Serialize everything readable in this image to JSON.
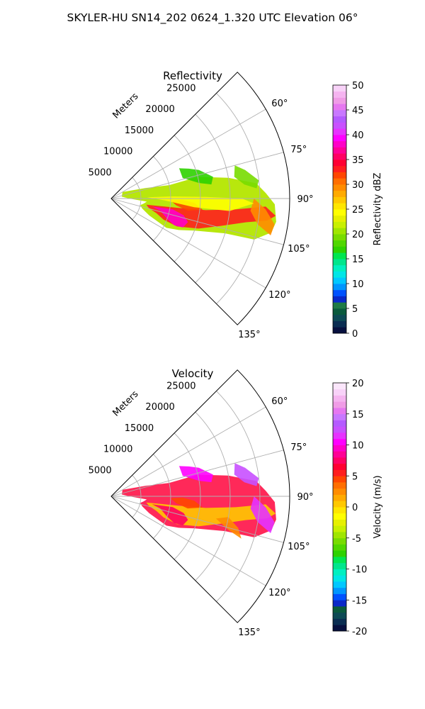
{
  "figure": {
    "suptitle": "SKYLER-HU  SN14_202  0624_1.320 UTC Elevation 06°"
  },
  "chart_data": [
    {
      "type": "polar-sector",
      "title": "Reflectivity",
      "radial_label": "Meters",
      "radial_ticks": [
        5000,
        10000,
        15000,
        20000,
        25000
      ],
      "radial_range": [
        0,
        30000
      ],
      "angle_ticks": [
        "60°",
        "75°",
        "90°",
        "105°",
        "120°",
        "135°"
      ],
      "angle_range_deg": [
        45,
        135
      ],
      "grid": true,
      "colorbar": {
        "label": "Reflectivity dBZ",
        "range": [
          0,
          50
        ],
        "ticks": [
          0,
          5,
          10,
          15,
          20,
          25,
          30,
          35,
          40,
          45,
          50
        ],
        "colors": [
          "#07103f",
          "#0a2d52",
          "#0d4a55",
          "#0a5a3d",
          "#1f7a45",
          "#0a28c8",
          "#0052ff",
          "#0096ff",
          "#00c8ff",
          "#00e6e6",
          "#00f0c0",
          "#00e68c",
          "#00e650",
          "#2ed200",
          "#50d700",
          "#78dc00",
          "#a0e600",
          "#c8f000",
          "#e6f000",
          "#ffff00",
          "#ffe600",
          "#ffc800",
          "#ffaa00",
          "#ff8c00",
          "#ff6e00",
          "#ff4600",
          "#ff1e1e",
          "#ff0032",
          "#ff0064",
          "#ff0096",
          "#ff00c8",
          "#ff00ff",
          "#e632ff",
          "#c850ff",
          "#b45aff",
          "#c878ff",
          "#e678f0",
          "#f09ce6",
          "#f5b4f0",
          "#f8d2f8"
        ]
      }
    },
    {
      "type": "polar-sector",
      "title": "Velocity",
      "radial_label": "Meters",
      "radial_ticks": [
        5000,
        10000,
        15000,
        20000,
        25000
      ],
      "radial_range": [
        0,
        30000
      ],
      "angle_ticks": [
        "60°",
        "75°",
        "90°",
        "105°",
        "120°",
        "135°"
      ],
      "angle_range_deg": [
        45,
        135
      ],
      "grid": true,
      "colorbar": {
        "label": "Velocity (m/s)",
        "range": [
          -20,
          20
        ],
        "ticks": [
          -20,
          -15,
          -10,
          -5,
          0,
          5,
          10,
          15,
          20
        ],
        "colors": [
          "#07103f",
          "#0a2d52",
          "#0d4a55",
          "#0a5a3d",
          "#0a28c8",
          "#0052ff",
          "#0096ff",
          "#00c8ff",
          "#00e6e6",
          "#00f0c0",
          "#00e68c",
          "#00e650",
          "#2ed200",
          "#50d700",
          "#78dc00",
          "#a0e600",
          "#c8f000",
          "#e6f000",
          "#ffff00",
          "#ffe600",
          "#ffc800",
          "#ffaa00",
          "#ff8c00",
          "#ff6e00",
          "#ff4600",
          "#ff1e1e",
          "#ff0032",
          "#ff0064",
          "#ff0096",
          "#ff00c8",
          "#ff00ff",
          "#e632ff",
          "#c850ff",
          "#b45aff",
          "#c878ff",
          "#e678f0",
          "#f09ce6",
          "#f5b4f0",
          "#f8d2f8",
          "#fbe6fb"
        ]
      }
    }
  ]
}
